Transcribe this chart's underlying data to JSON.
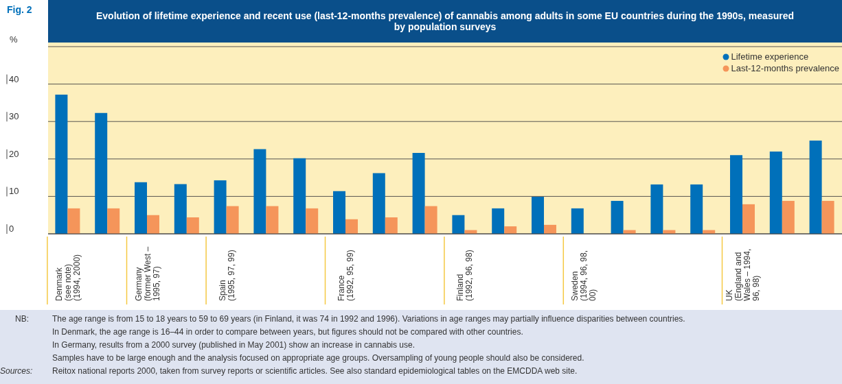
{
  "chart_data": {
    "type": "bar",
    "title": "Evolution of lifetime experience and recent use (last-12-months prevalence) of cannabis among adults in some EU countries during the 1990s, measured by population surveys",
    "ylabel": "%",
    "categories": [
      "Denmark (see note) (1994, 2000)",
      null,
      "Germany (former West – 1995, 97)",
      null,
      "Spain (1995, 97, 99)",
      null,
      null,
      "France (1992, 95, 99)",
      null,
      null,
      "Finland (1992, 96, 98)",
      null,
      null,
      "Sweden (1994, 96, 98, 00)",
      null,
      null,
      null,
      "UK (England and Wales – 1994, 96, 98)",
      null,
      null
    ],
    "series": [
      {
        "name": "Lifetime experience",
        "color": "#0070ba",
        "values": [
          37.2,
          32.3,
          13.8,
          13.3,
          14.3,
          22.6,
          20.2,
          11.4,
          16.2,
          21.6,
          5.0,
          6.8,
          9.9,
          6.8,
          8.8,
          13.2,
          13.2,
          21.0,
          22.0,
          24.9
        ]
      },
      {
        "name": "Last-12-months prevalence",
        "color": "#f5955a",
        "values": [
          6.8,
          6.8,
          5.0,
          4.4,
          7.4,
          7.4,
          6.8,
          3.9,
          4.4,
          7.4,
          1.0,
          2.0,
          2.4,
          null,
          1.0,
          1.0,
          1.0,
          7.9,
          8.8,
          8.8
        ]
      }
    ],
    "ylim": [
      0,
      50
    ],
    "yticks": [
      0,
      10,
      20,
      30,
      40
    ],
    "grid": "y",
    "legend": "top right",
    "annotations": [
      "Fig. 2",
      "NB:",
      "The age range is from 15 to 18 years to 59 to 69 years (in Finland, it was 74 in 1992 and 1996). Variations in age ranges may partially influence disparities between countries.",
      "In Denmark, the age range is 16–44 in order to compare between years, but figures should not be compared with other countries.",
      "In Germany, results from a 2000 survey (published in May 2001) show an increase in cannabis use.",
      "Samples have to be large enough and the analysis focused on appropriate age groups. Oversampling of young people should also be considered.",
      "Sources:",
      "Reitox national reports 2000, taken from survey reports or scientific articles. See also standard epidemiological tables on the EMCDDA web site."
    ]
  }
}
